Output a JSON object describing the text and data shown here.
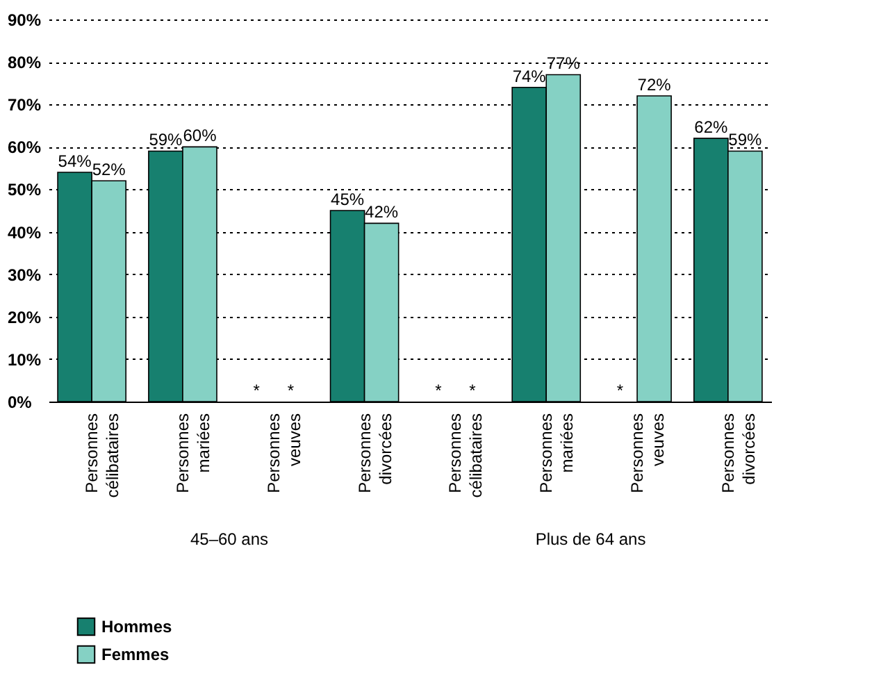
{
  "chart_data": {
    "type": "bar",
    "categories": [
      "Personnes célibataires",
      "Personnes mariées",
      "Personnes veuves",
      "Personnes divorcées",
      "Personnes célibataires",
      "Personnes mariées",
      "Personnes veuves",
      "Personnes divorcées"
    ],
    "series": [
      {
        "name": "Hommes",
        "color": "#17806f",
        "values": [
          54,
          59,
          null,
          45,
          null,
          74,
          null,
          62
        ],
        "value_labels": [
          "54%",
          "59%",
          "*",
          "45%",
          "*",
          "74%",
          "*",
          "62%"
        ]
      },
      {
        "name": "Femmes",
        "color": "#85d1c4",
        "values": [
          52,
          60,
          null,
          42,
          null,
          77,
          72,
          59
        ],
        "value_labels": [
          "52%",
          "60%",
          "*",
          "42%",
          "*",
          "77%",
          "72%",
          "59%"
        ]
      }
    ],
    "ylim": [
      0,
      90
    ],
    "yticks": [
      {
        "value": 0,
        "label": "0%"
      },
      {
        "value": 10,
        "label": "10%"
      },
      {
        "value": 20,
        "label": "20%"
      },
      {
        "value": 30,
        "label": "30%"
      },
      {
        "value": 40,
        "label": "40%"
      },
      {
        "value": 50,
        "label": "50%"
      },
      {
        "value": 60,
        "label": "60%"
      },
      {
        "value": 70,
        "label": "70%"
      },
      {
        "value": 80,
        "label": "80%"
      },
      {
        "value": 90,
        "label": "90%"
      }
    ],
    "grid": "y",
    "legend": "bottom left",
    "annotations": [
      "45–60 ans",
      "Plus de 64 ans"
    ]
  }
}
